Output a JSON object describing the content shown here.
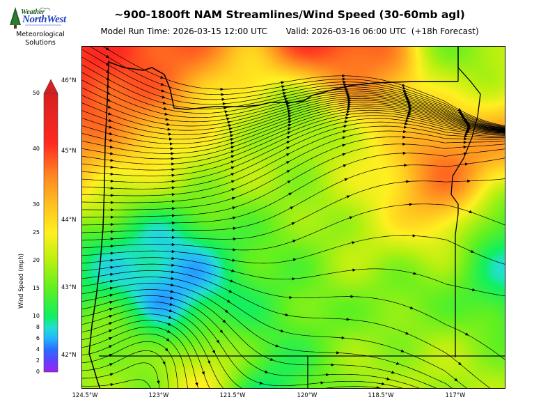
{
  "branding": {
    "logo_top": "Weather",
    "logo_main": "NorthWest",
    "sub_line1": "Meteorological",
    "sub_line2": "Solutions"
  },
  "header": {
    "title": "~900-1800ft NAM Streamlines/Wind Speed (30-60mb agl)",
    "subtitle": "Model Run Time: 2026-03-15 12:00 UTC       Valid: 2026-03-16 06:00 UTC  (+18h Forecast)"
  },
  "map": {
    "lat_labels": [
      "46°N",
      "45°N",
      "44°N",
      "43°N",
      "42°N"
    ],
    "lon_labels": [
      "124.5°W",
      "123°W",
      "121.5°W",
      "120°W",
      "118.5°W",
      "117°W"
    ],
    "lon_range": [
      -124.5,
      -116
    ],
    "lat_range": [
      41.5,
      46.5
    ]
  },
  "colorbar": {
    "label": "Wind Speed (mph)",
    "ticks": [
      "0",
      "2",
      "4",
      "6",
      "8",
      "10",
      "15",
      "20",
      "25",
      "30",
      "40",
      "50"
    ],
    "colors": [
      "#a020f0",
      "#6040ff",
      "#2a6cff",
      "#24b4ff",
      "#20e0d0",
      "#10f060",
      "#60f020",
      "#b8f010",
      "#fff020",
      "#ffc020",
      "#ff8a20",
      "#ff2a20",
      "#d62020"
    ]
  }
}
